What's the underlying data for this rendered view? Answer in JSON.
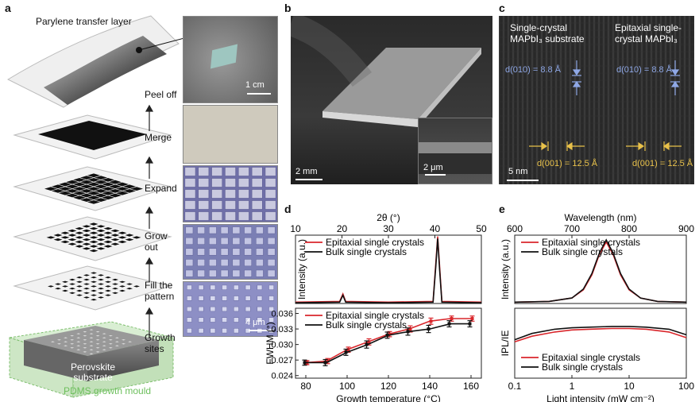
{
  "panel_labels": {
    "a": "a",
    "b": "b",
    "c": "c",
    "d": "d",
    "e": "e"
  },
  "panel_a": {
    "top_label": "Parylene transfer layer",
    "steps": [
      "Peel off",
      "Merge",
      "Expand",
      "Grow out",
      "Fill the pattern",
      "Growth sites"
    ],
    "substrate_label": "Perovskite substrate",
    "mould_label": "PDMS growth mould",
    "scale_top": "1 cm",
    "scale_bottom": "4 μm",
    "colors": {
      "mould": "#8fcf7f",
      "steps_arrow": "#222222"
    }
  },
  "panel_b": {
    "scale_main": "2 mm",
    "scale_inset": "2 μm"
  },
  "panel_c": {
    "left_title_1": "Single-crystal",
    "left_title_2": "MAPbI₃ substrate",
    "right_title_1": "Epitaxial single-",
    "right_title_2": "crystal MAPbI₃",
    "d010_left": "d(010) = 8.8 Å",
    "d010_right": "d(010) = 8.8 Å",
    "d001_left": "d(001) = 12.5 Å",
    "d001_right": "d(001) = 12.5 Å",
    "scale": "5 nm",
    "colors": {
      "d010": "#8fa8e6",
      "d001": "#e8c14a"
    }
  },
  "chart_data": [
    {
      "type": "line",
      "panel": "d",
      "title": "",
      "xlabel": "2θ (°)",
      "ylabel": "Intensity (a.u.)",
      "xlim": [
        10,
        50
      ],
      "xticks": [
        10,
        20,
        30,
        40,
        50
      ],
      "series": [
        {
          "name": "Epitaxial single crystals",
          "color": "#d9262b",
          "x": [
            10,
            19.5,
            20.2,
            20.8,
            30,
            39.6,
            40.2,
            40.6,
            41.0,
            41.5,
            50
          ],
          "y": [
            0.02,
            0.03,
            0.14,
            0.03,
            0.02,
            0.03,
            0.6,
            0.98,
            0.55,
            0.03,
            0.02
          ]
        },
        {
          "name": "Bulk single crystals",
          "color": "#111111",
          "x": [
            10,
            19.5,
            20.2,
            20.8,
            30,
            39.6,
            40.2,
            40.6,
            41.0,
            41.5,
            50
          ],
          "y": [
            0.01,
            0.02,
            0.12,
            0.02,
            0.01,
            0.02,
            0.55,
            0.95,
            0.5,
            0.02,
            0.01
          ]
        }
      ]
    },
    {
      "type": "line",
      "panel": "d",
      "xlabel": "Growth temperature (°C)",
      "ylabel": "FWHM (°)",
      "xlim": [
        75,
        165
      ],
      "ylim": [
        0.0235,
        0.037
      ],
      "xticks": [
        80,
        100,
        120,
        140,
        160
      ],
      "yticks": [
        0.024,
        0.027,
        0.03,
        0.033,
        0.036
      ],
      "series": [
        {
          "name": "Epitaxial single crystals",
          "color": "#d9262b",
          "x": [
            80,
            90,
            100,
            110,
            120,
            130,
            140,
            150,
            160
          ],
          "y": [
            0.0265,
            0.0268,
            0.029,
            0.0305,
            0.032,
            0.033,
            0.0345,
            0.035,
            0.035
          ],
          "err": [
            0.0004,
            0.0005,
            0.0005,
            0.0006,
            0.0005,
            0.0006,
            0.0006,
            0.0005,
            0.0005
          ]
        },
        {
          "name": "Bulk single crystals",
          "color": "#111111",
          "x": [
            80,
            90,
            100,
            110,
            120,
            130,
            140,
            150,
            160
          ],
          "y": [
            0.0265,
            0.0265,
            0.0285,
            0.03,
            0.0318,
            0.0325,
            0.033,
            0.034,
            0.034
          ],
          "err": [
            0.0005,
            0.0006,
            0.0006,
            0.0007,
            0.0006,
            0.0007,
            0.0007,
            0.0006,
            0.0006
          ]
        }
      ]
    },
    {
      "type": "line",
      "panel": "e",
      "xlabel": "Wavelength (nm)",
      "ylabel": "Intensity (a.u.)",
      "xlim": [
        600,
        900
      ],
      "xticks": [
        600,
        700,
        800,
        900
      ],
      "series": [
        {
          "name": "Epitaxial single crystals",
          "color": "#d9262b",
          "x": [
            600,
            660,
            700,
            720,
            735,
            748,
            760,
            772,
            785,
            800,
            820,
            850,
            900
          ],
          "y": [
            0.02,
            0.03,
            0.08,
            0.2,
            0.42,
            0.72,
            0.9,
            0.72,
            0.42,
            0.2,
            0.08,
            0.03,
            0.02
          ]
        },
        {
          "name": "Bulk single crystals",
          "color": "#111111",
          "x": [
            600,
            660,
            700,
            720,
            735,
            748,
            760,
            772,
            785,
            800,
            820,
            850,
            900
          ],
          "y": [
            0.02,
            0.03,
            0.08,
            0.21,
            0.44,
            0.74,
            0.93,
            0.74,
            0.44,
            0.21,
            0.08,
            0.03,
            0.02
          ]
        }
      ]
    },
    {
      "type": "line",
      "panel": "e",
      "xlabel": "Light intensity (mW cm⁻²)",
      "ylabel": "IPL/IE",
      "xscale": "log",
      "xlim": [
        0.1,
        100
      ],
      "xticks": [
        0.1,
        1,
        10,
        100
      ],
      "xtick_labels": [
        "0.1",
        "1",
        "10",
        "100"
      ],
      "series": [
        {
          "name": "Epitaxial single crystals",
          "color": "#d9262b",
          "x": [
            0.1,
            0.2,
            0.5,
            1,
            2,
            5,
            10,
            20,
            50,
            100
          ],
          "y": [
            0.52,
            0.6,
            0.66,
            0.69,
            0.7,
            0.71,
            0.71,
            0.7,
            0.66,
            0.58
          ]
        },
        {
          "name": "Bulk single crystals",
          "color": "#111111",
          "x": [
            0.1,
            0.2,
            0.5,
            1,
            2,
            5,
            10,
            20,
            50,
            100
          ],
          "y": [
            0.55,
            0.64,
            0.7,
            0.72,
            0.73,
            0.74,
            0.74,
            0.73,
            0.7,
            0.62
          ]
        }
      ]
    }
  ]
}
